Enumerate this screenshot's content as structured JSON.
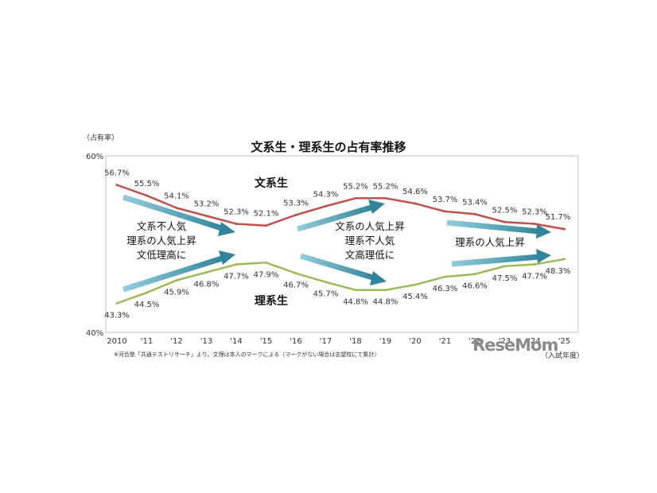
{
  "chart_data": {
    "type": "line",
    "title": "文系生・理系生の占有率推移",
    "ylabel": "（占有率）",
    "xlabel": "（入試年度）",
    "ylim": [
      40,
      60
    ],
    "y_ticks": [
      "60%",
      "40%"
    ],
    "x": [
      "2010",
      "'11",
      "'12",
      "'13",
      "'14",
      "'15",
      "'16",
      "'17",
      "'18",
      "'19",
      "'20",
      "'21",
      "'22",
      "'23",
      "'24",
      "'25"
    ],
    "series": [
      {
        "name": "文系生",
        "color": "#c0504d",
        "values": [
          56.7,
          55.5,
          54.1,
          53.2,
          52.3,
          52.1,
          53.3,
          54.3,
          55.2,
          55.2,
          54.6,
          53.7,
          53.4,
          52.5,
          52.3,
          51.7
        ],
        "labels": [
          "56.7%",
          "55.5%",
          "54.1%",
          "53.2%",
          "52.3%",
          "52.1%",
          "53.3%",
          "54.3%",
          "55.2%",
          "55.2%",
          "54.6%",
          "53.7%",
          "53.4%",
          "52.5%",
          "52.3%",
          "51.7%"
        ]
      },
      {
        "name": "理系生",
        "color": "#9bbb59",
        "values": [
          43.3,
          44.5,
          45.9,
          46.8,
          47.7,
          47.9,
          46.7,
          45.7,
          44.8,
          44.8,
          45.4,
          46.3,
          46.6,
          47.5,
          47.7,
          48.3
        ],
        "labels": [
          "43.3%",
          "44.5%",
          "45.9%",
          "46.8%",
          "47.7%",
          "47.9%",
          "46.7%",
          "45.7%",
          "44.8%",
          "44.8%",
          "45.4%",
          "46.3%",
          "46.6%",
          "47.5%",
          "47.7%",
          "48.3%"
        ]
      }
    ],
    "annotations": [
      {
        "lines": [
          "文系不人気",
          "理系の人気上昇",
          "文低理高に"
        ]
      },
      {
        "lines": [
          "文系の人気上昇",
          "理系不人気",
          "文高理低に"
        ]
      },
      {
        "lines": [
          "理系の人気上昇"
        ]
      }
    ],
    "arrow_colors": {
      "dark": "#31849b",
      "light": "#92cddc"
    },
    "grid": false,
    "legend": "inline"
  },
  "footnote": "※河合塾「共通テストリサーチ」より。文理は本人のマークによる（マークがない場合は志望校にて集計）",
  "watermark": "ReseMom"
}
